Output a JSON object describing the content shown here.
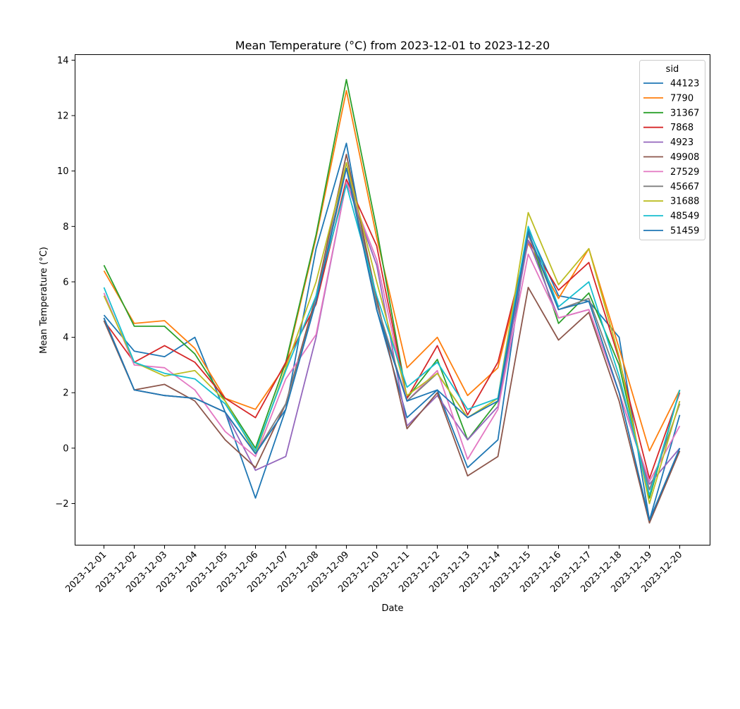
{
  "chart_data": {
    "type": "line",
    "title": "Mean Temperature (°C) from 2023-12-01 to 2023-12-20",
    "xlabel": "Date",
    "ylabel": "Mean Temperature (°C)",
    "ylim": [
      -3.5,
      14.2
    ],
    "yticks": [
      -2,
      0,
      2,
      4,
      6,
      8,
      10,
      12,
      14
    ],
    "ytick_labels": [
      "−2",
      "0",
      "2",
      "4",
      "6",
      "8",
      "10",
      "12",
      "14"
    ],
    "grid": false,
    "legend": {
      "title": "sid",
      "placement": "top-right"
    },
    "categories": [
      "2023-12-01",
      "2023-12-02",
      "2023-12-03",
      "2023-12-04",
      "2023-12-05",
      "2023-12-06",
      "2023-12-07",
      "2023-12-08",
      "2023-12-09",
      "2023-12-10",
      "2023-12-11",
      "2023-12-12",
      "2023-12-13",
      "2023-12-14",
      "2023-12-15",
      "2023-12-16",
      "2023-12-17",
      "2023-12-18",
      "2023-12-19",
      "2023-12-20"
    ],
    "series": [
      {
        "name": "44123",
        "color": "#1f77b4",
        "values": [
          4.8,
          3.5,
          3.3,
          4.0,
          1.3,
          -1.8,
          1.4,
          7.2,
          11.0,
          5.0,
          1.1,
          2.1,
          -0.7,
          0.3,
          7.9,
          5.5,
          5.3,
          4.0,
          -2.6,
          1.2
        ]
      },
      {
        "name": "7790",
        "color": "#ff7f0e",
        "values": [
          6.4,
          4.5,
          4.6,
          3.6,
          1.8,
          1.4,
          3.0,
          7.6,
          12.9,
          7.6,
          2.9,
          4.0,
          1.9,
          2.9,
          7.4,
          5.4,
          7.2,
          3.6,
          -0.1,
          2.1
        ]
      },
      {
        "name": "31367",
        "color": "#2ca02c",
        "values": [
          6.6,
          4.4,
          4.4,
          3.4,
          1.7,
          0.0,
          3.1,
          7.7,
          13.3,
          7.9,
          1.8,
          3.2,
          0.3,
          1.7,
          7.8,
          4.5,
          5.6,
          3.0,
          -1.8,
          2.1
        ]
      },
      {
        "name": "7868",
        "color": "#d62728",
        "values": [
          4.6,
          3.1,
          3.7,
          3.1,
          1.8,
          1.1,
          3.1,
          5.2,
          9.7,
          7.3,
          1.8,
          3.7,
          1.2,
          3.1,
          7.5,
          5.7,
          6.7,
          3.2,
          -1.1,
          2.0
        ]
      },
      {
        "name": "4923",
        "color": "#9467bd",
        "values": [
          4.7,
          2.1,
          1.9,
          1.8,
          1.3,
          -0.8,
          -0.3,
          4.0,
          9.6,
          6.6,
          0.8,
          1.9,
          0.3,
          1.5,
          7.5,
          4.7,
          5.0,
          2.0,
          -1.3,
          0.0
        ]
      },
      {
        "name": "49908",
        "color": "#8c564b",
        "values": [
          4.6,
          2.1,
          2.3,
          1.7,
          0.3,
          -0.7,
          1.6,
          5.5,
          10.6,
          5.4,
          0.7,
          2.0,
          -1.0,
          -0.3,
          5.8,
          3.9,
          4.9,
          1.7,
          -2.7,
          -0.1
        ]
      },
      {
        "name": "27529",
        "color": "#e377c2",
        "values": [
          5.6,
          3.0,
          2.9,
          2.1,
          0.6,
          -0.3,
          2.5,
          4.1,
          9.6,
          6.8,
          1.7,
          2.8,
          -0.4,
          1.4,
          7.0,
          4.7,
          5.0,
          2.0,
          -1.2,
          0.8
        ]
      },
      {
        "name": "45667",
        "color": "#7f7f7f",
        "values": [
          4.7,
          2.1,
          1.9,
          1.8,
          1.3,
          -0.2,
          1.6,
          5.3,
          10.3,
          5.2,
          1.7,
          2.7,
          1.1,
          1.7,
          7.7,
          5.0,
          5.4,
          2.4,
          -1.5,
          1.6
        ]
      },
      {
        "name": "31688",
        "color": "#bcbd22",
        "values": [
          5.5,
          3.1,
          2.6,
          2.8,
          1.7,
          -0.2,
          2.9,
          6.0,
          10.3,
          6.0,
          1.9,
          2.7,
          1.1,
          1.8,
          8.5,
          5.9,
          7.2,
          3.3,
          -2.0,
          1.7
        ]
      },
      {
        "name": "48549",
        "color": "#17becf",
        "values": [
          5.8,
          3.1,
          2.7,
          2.5,
          1.6,
          -0.1,
          2.8,
          5.5,
          9.5,
          5.5,
          2.2,
          3.1,
          1.4,
          1.8,
          8.0,
          5.1,
          6.0,
          2.6,
          -1.7,
          2.1
        ]
      },
      {
        "name": "51459",
        "color": "#1f77b4",
        "values": [
          4.7,
          2.1,
          1.9,
          1.8,
          1.3,
          -0.2,
          1.4,
          5.3,
          10.1,
          5.0,
          1.7,
          2.1,
          1.1,
          1.7,
          7.8,
          5.0,
          5.3,
          2.0,
          -2.6,
          0.0
        ]
      }
    ]
  }
}
